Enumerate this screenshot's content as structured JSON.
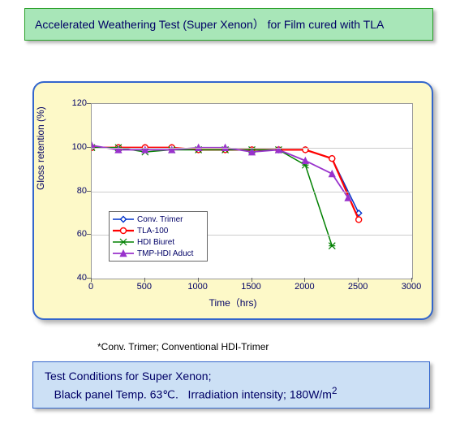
{
  "title": "Accelerated Weathering Test (Super Xenon） for Film cured with TLA",
  "chart": {
    "type": "line",
    "background_color": "#fdf9c8",
    "plot_bg": "#ffffff",
    "grid_color": "#cccccc",
    "axis_color": "#999999",
    "title_fontcolor": "#000066",
    "xlabel": "Time（hrs)",
    "ylabel": "Gloss retention (%)",
    "label_fontsize": 12,
    "tick_fontsize": 11,
    "xlim": [
      0,
      3000
    ],
    "ylim": [
      40,
      120
    ],
    "xtick_step": 500,
    "ytick_step": 20,
    "xticks": [
      0,
      500,
      1000,
      1500,
      2000,
      2500,
      3000
    ],
    "yticks": [
      40,
      60,
      80,
      100,
      120
    ],
    "series": [
      {
        "name": "Conv. Trimer",
        "color": "#0033cc",
        "marker": "diamond",
        "marker_fill": "#ffffff",
        "line_width": 1.5,
        "x": [
          0,
          250,
          500,
          750,
          1000,
          1250,
          1500,
          1750,
          2000,
          2250,
          2500
        ],
        "y": [
          100,
          100,
          100,
          100,
          99,
          99,
          99,
          99,
          99,
          95,
          70
        ]
      },
      {
        "name": "TLA-100",
        "color": "#ff0000",
        "marker": "circle",
        "marker_fill": "#ffffff",
        "line_width": 2.2,
        "x": [
          0,
          250,
          500,
          750,
          1000,
          1250,
          1500,
          1750,
          2000,
          2250,
          2500
        ],
        "y": [
          100,
          100,
          100,
          100,
          99,
          99,
          99,
          99,
          99,
          95,
          67
        ]
      },
      {
        "name": "HDI Biuret",
        "color": "#008000",
        "marker": "star",
        "marker_fill": "#008000",
        "line_width": 1.5,
        "x": [
          0,
          250,
          500,
          750,
          1000,
          1250,
          1500,
          1750,
          2000,
          2250
        ],
        "y": [
          100,
          100,
          98,
          99,
          99,
          99,
          99,
          99,
          92,
          55
        ]
      },
      {
        "name": "TMP-HDI Aduct",
        "color": "#9933cc",
        "marker": "triangle",
        "marker_fill": "#9933cc",
        "line_width": 1.8,
        "x": [
          0,
          250,
          500,
          750,
          1000,
          1250,
          1500,
          1750,
          2000,
          2250,
          2400
        ],
        "y": [
          101,
          99,
          99,
          99,
          100,
          100,
          98,
          99,
          94,
          88,
          77
        ]
      }
    ],
    "legend": {
      "position": "lower-left-inside",
      "border_color": "#666666",
      "bg": "#ffffff",
      "fontsize": 10
    }
  },
  "footnote": "*Conv. Trimer; Conventional HDI-Trimer",
  "conditions": {
    "line1": "Test Conditions for Super Xenon;",
    "line2_pre": "   Black panel Temp. 63℃.   Irradiation intensity; 180W/m",
    "line2_sup": "2"
  },
  "colors": {
    "title_bg": "#a8e6b8",
    "title_border": "#2aa02a",
    "panel_border": "#3366cc",
    "conditions_bg": "#cce0f5",
    "conditions_border": "#3366cc",
    "text": "#000066"
  }
}
